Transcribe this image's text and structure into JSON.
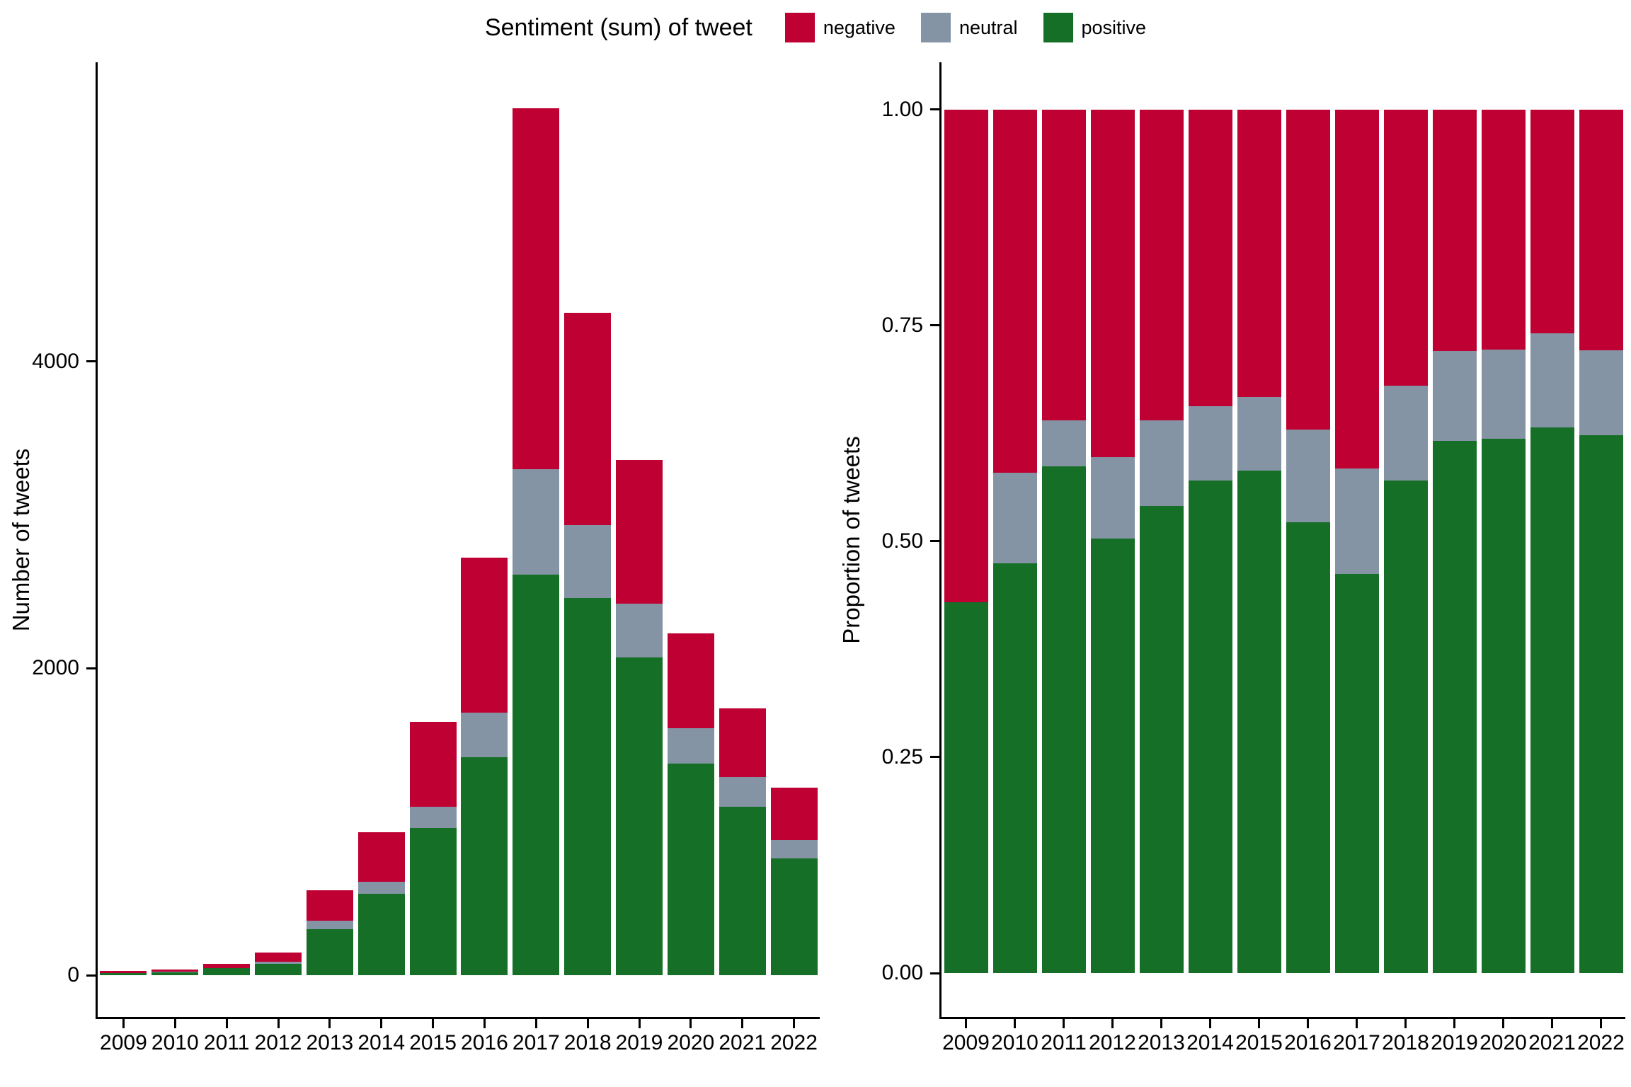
{
  "legend": {
    "title": "Sentiment (sum) of tweet",
    "items": [
      {
        "label": "negative",
        "color": "#BE0032"
      },
      {
        "label": "neutral",
        "color": "#8494A5"
      },
      {
        "label": "positive",
        "color": "#156F26"
      }
    ]
  },
  "chart_data": [
    {
      "type": "bar",
      "stacked": true,
      "orientation": "vertical",
      "title": "",
      "xlabel": "",
      "ylabel": "Number of tweets",
      "categories": [
        "2009",
        "2010",
        "2011",
        "2012",
        "2013",
        "2014",
        "2015",
        "2016",
        "2017",
        "2018",
        "2019",
        "2020",
        "2021",
        "2022"
      ],
      "stack_order_bottom_to_top": [
        "positive",
        "neutral",
        "negative"
      ],
      "series": [
        {
          "name": "negative",
          "color": "#BE0032",
          "values": [
            16,
            16,
            27,
            60,
            200,
            320,
            550,
            1010,
            2350,
            1380,
            940,
            620,
            450,
            340
          ]
        },
        {
          "name": "neutral",
          "color": "#8494A5",
          "values": [
            0,
            4,
            4,
            14,
            55,
            80,
            140,
            290,
            690,
            475,
            350,
            230,
            190,
            120
          ]
        },
        {
          "name": "positive",
          "color": "#156F26",
          "values": [
            12,
            18,
            44,
            75,
            300,
            530,
            960,
            1420,
            2610,
            2460,
            2070,
            1380,
            1100,
            760
          ]
        }
      ],
      "totals": [
        28,
        38,
        75,
        149,
        555,
        930,
        1650,
        2720,
        5650,
        4315,
        3360,
        2230,
        1740,
        1220
      ],
      "yticks": {
        "values": [
          0,
          2000,
          4000
        ],
        "labels": [
          "0",
          "2000",
          "4000"
        ]
      },
      "ylim": [
        0,
        5950
      ],
      "grid": false,
      "legend_position": "top"
    },
    {
      "type": "bar",
      "stacked": true,
      "normalized": true,
      "orientation": "vertical",
      "title": "",
      "xlabel": "",
      "ylabel": "Proportion of tweets",
      "categories": [
        "2009",
        "2010",
        "2011",
        "2012",
        "2013",
        "2014",
        "2015",
        "2016",
        "2017",
        "2018",
        "2019",
        "2020",
        "2021",
        "2022"
      ],
      "stack_order_bottom_to_top": [
        "positive",
        "neutral",
        "negative"
      ],
      "series": [
        {
          "name": "negative",
          "color": "#BE0032",
          "values": [
            0.571,
            0.421,
            0.36,
            0.403,
            0.36,
            0.344,
            0.333,
            0.371,
            0.416,
            0.32,
            0.28,
            0.278,
            0.259,
            0.279
          ]
        },
        {
          "name": "neutral",
          "color": "#8494A5",
          "values": [
            0.0,
            0.105,
            0.053,
            0.094,
            0.099,
            0.086,
            0.085,
            0.107,
            0.122,
            0.11,
            0.104,
            0.103,
            0.109,
            0.098
          ]
        },
        {
          "name": "positive",
          "color": "#156F26",
          "values": [
            0.429,
            0.474,
            0.587,
            0.503,
            0.541,
            0.57,
            0.582,
            0.522,
            0.462,
            0.57,
            0.616,
            0.619,
            0.632,
            0.623
          ]
        }
      ],
      "yticks": {
        "values": [
          0,
          0.25,
          0.5,
          0.75,
          1.0
        ],
        "labels": [
          "0.00",
          "0.25",
          "0.50",
          "0.75",
          "1.00"
        ]
      },
      "ylim": [
        0,
        1.0545
      ],
      "grid": false,
      "legend_position": "top"
    }
  ]
}
